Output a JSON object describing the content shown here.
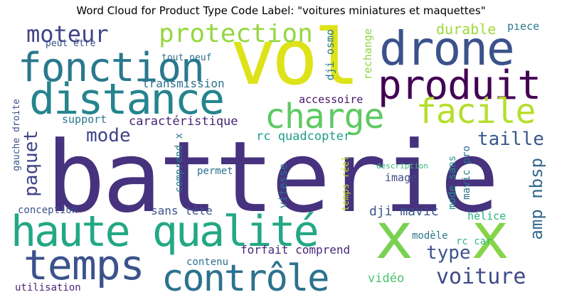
{
  "chart_data": {
    "type": "wordcloud",
    "title": "Word Cloud for Product Type Code Label: \"voitures miniatures et maquettes\"",
    "words": [
      {
        "text": "batterie",
        "color": "#46327e"
      },
      {
        "text": "vol",
        "color": "#dde318"
      },
      {
        "text": "drone",
        "color": "#3b528b"
      },
      {
        "text": "fonction",
        "color": "#2a788e"
      },
      {
        "text": "distance",
        "color": "#25848e"
      },
      {
        "text": "produit",
        "color": "#440154"
      },
      {
        "text": "haute qualité",
        "color": "#22a884"
      },
      {
        "text": "temps",
        "color": "#3b528b"
      },
      {
        "text": "contrôle",
        "color": "#2c728e"
      },
      {
        "text": "x",
        "color": "#7ad151"
      },
      {
        "text": "x",
        "color": "#86d549"
      },
      {
        "text": "charge",
        "color": "#5ec962"
      },
      {
        "text": "facile",
        "color": "#b5de2b"
      },
      {
        "text": "protection",
        "color": "#95d840"
      },
      {
        "text": "moteur",
        "color": "#414487"
      },
      {
        "text": "voiture",
        "color": "#3e4a89"
      },
      {
        "text": "taille",
        "color": "#38588c"
      },
      {
        "text": "type",
        "color": "#3b528b"
      },
      {
        "text": "mode",
        "color": "#414487"
      },
      {
        "text": "paquet",
        "color": "#414487"
      },
      {
        "text": "amp nbsp",
        "color": "#31688e"
      },
      {
        "text": "dji mavic",
        "color": "#39568c"
      },
      {
        "text": "durable",
        "color": "#a0da39"
      },
      {
        "text": "pièce",
        "color": "#2a788e"
      },
      {
        "text": "transmission",
        "color": "#2c728e"
      },
      {
        "text": "caractéristique",
        "color": "#482475"
      },
      {
        "text": "rc quadcopter",
        "color": "#1f9e89"
      },
      {
        "text": "sans tête",
        "color": "#3b528b"
      },
      {
        "text": "forfait comprend",
        "color": "#482878"
      },
      {
        "text": "accessoire",
        "color": "#471365"
      },
      {
        "text": "support",
        "color": "#2a788e"
      },
      {
        "text": "permet",
        "color": "#2c728e"
      },
      {
        "text": "image",
        "color": "#3e4a89"
      },
      {
        "text": "description",
        "color": "#35b779"
      },
      {
        "text": "contenu",
        "color": "#2c728e"
      },
      {
        "text": "conception",
        "color": "#3b528b"
      },
      {
        "text": "utilisation",
        "color": "#482878"
      },
      {
        "text": "vidéo",
        "color": "#4ac16d"
      },
      {
        "text": "modèle",
        "color": "#2a788e"
      },
      {
        "text": "hélice",
        "color": "#2ab07f"
      },
      {
        "text": "rc car",
        "color": "#35b779"
      },
      {
        "text": "peut être",
        "color": "#3b528b"
      },
      {
        "text": "tout neuf",
        "color": "#2c728e"
      },
      {
        "text": "dji osmo",
        "color": "#2a788e"
      },
      {
        "text": "rechange",
        "color": "#8fd744"
      },
      {
        "text": "gauche droite",
        "color": "#3b528b"
      },
      {
        "text": "comprend x",
        "color": "#2a788e"
      },
      {
        "text": "vitesse",
        "color": "#2c728e"
      },
      {
        "text": "temps réel",
        "color": "#c2df23"
      },
      {
        "text": "mode sans",
        "color": "#21918c"
      },
      {
        "text": "mavic pro",
        "color": "#2c728e"
      }
    ]
  }
}
